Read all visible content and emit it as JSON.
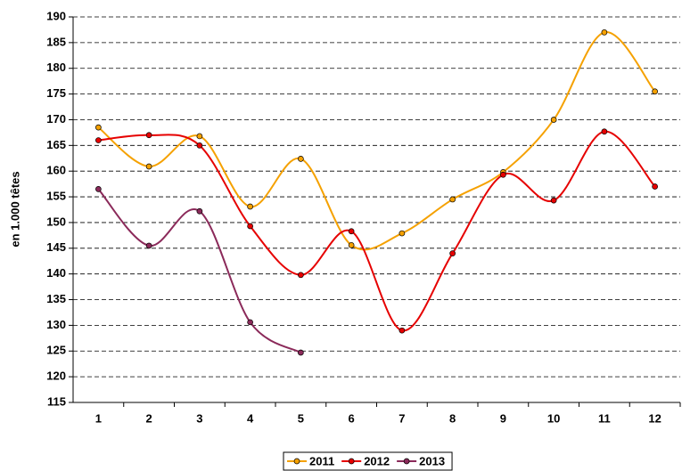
{
  "chart_data": {
    "type": "line",
    "y_label": "en 1.000 têtes",
    "categories": [
      "1",
      "2",
      "3",
      "4",
      "5",
      "6",
      "7",
      "8",
      "9",
      "10",
      "11",
      "12"
    ],
    "series": [
      {
        "name": "2011",
        "color": "#f5a100",
        "values": [
          168.5,
          160.9,
          166.8,
          153.1,
          162.4,
          145.6,
          147.9,
          154.5,
          159.8,
          170,
          187,
          175.5
        ]
      },
      {
        "name": "2012",
        "color": "#e60000",
        "values": [
          166,
          167,
          165,
          149.3,
          139.8,
          148.3,
          129,
          144,
          159.3,
          154.3,
          167.7,
          157
        ]
      },
      {
        "name": "2013",
        "color": "#8b2a5a",
        "values": [
          156.5,
          145.5,
          152.2,
          130.6,
          124.7,
          null,
          null,
          null,
          null,
          null,
          null,
          null
        ]
      }
    ],
    "ylim": [
      115,
      190
    ],
    "yticks": [
      115,
      120,
      125,
      130,
      135,
      140,
      145,
      150,
      155,
      160,
      165,
      170,
      175,
      180,
      185,
      190
    ],
    "grid": true,
    "legend": "bottom"
  }
}
